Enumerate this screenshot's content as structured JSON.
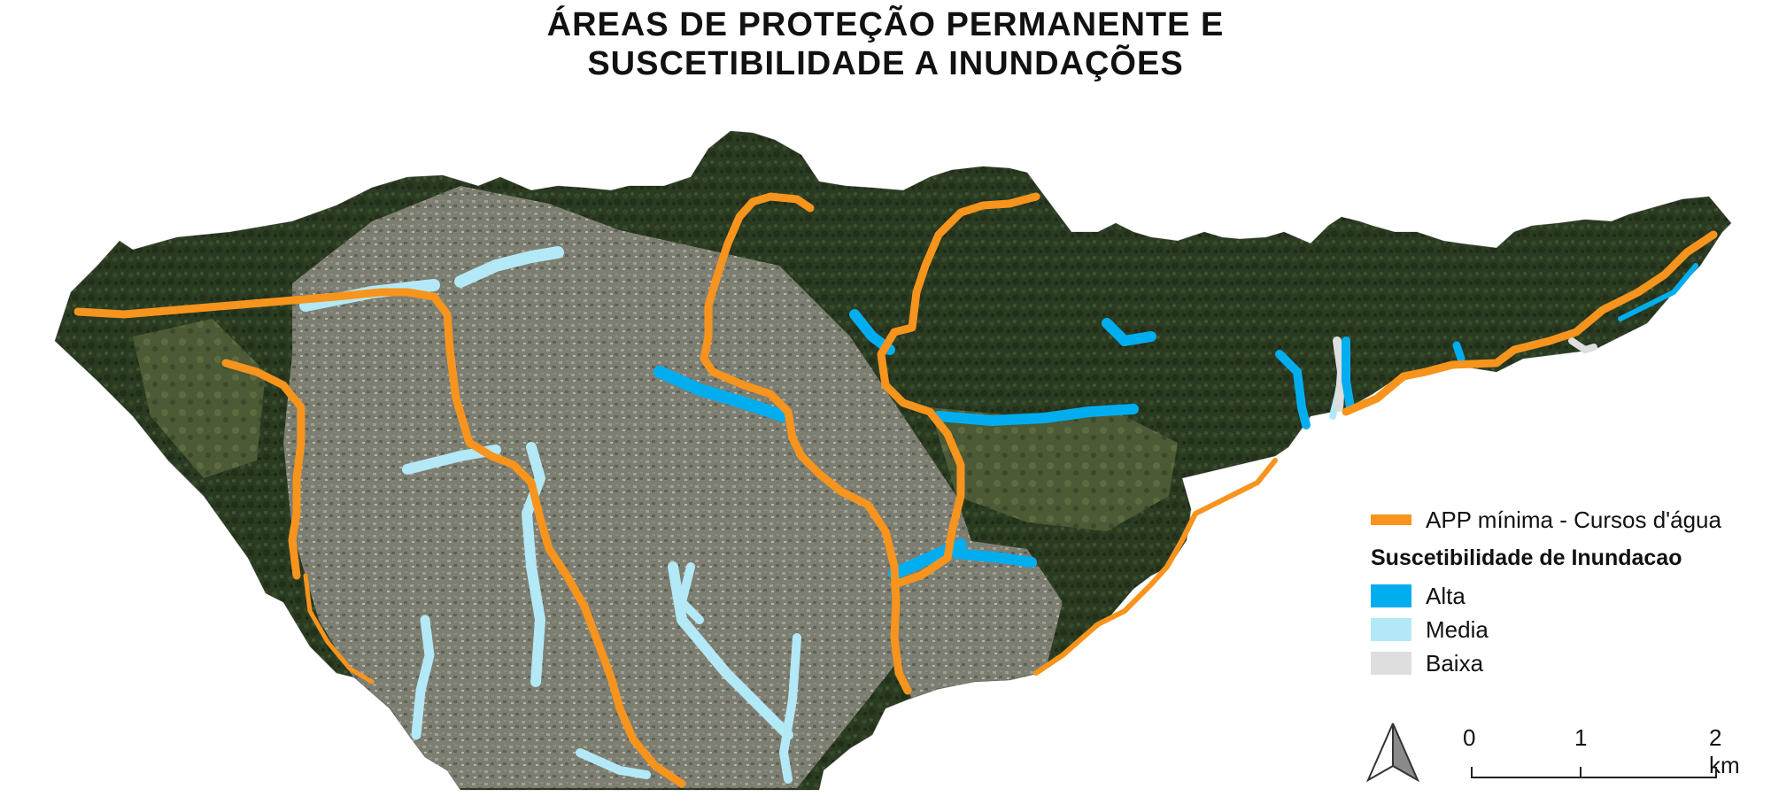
{
  "title": {
    "line1": "ÁREAS DE PROTEÇÃO PERMANENTE E",
    "line2": "SUSCETIBILIDADE A INUNDAÇÕES"
  },
  "legend": {
    "app_label": "APP mínima - Cursos d'água",
    "heading": "Suscetibilidade de Inundacao",
    "classes": [
      {
        "label": "Alta",
        "color": "#00aeef"
      },
      {
        "label": "Media",
        "color": "#b3e9f7"
      },
      {
        "label": "Baixa",
        "color": "#dedede"
      }
    ],
    "app_color": "#f7941d"
  },
  "scale_bar": {
    "ticks": [
      "0",
      "1",
      "2 km"
    ]
  },
  "colors": {
    "forest": "#2b3a22",
    "urban": "#7b7d70",
    "river_app": "#f7941d",
    "flood_high": "#00aeef",
    "flood_medium": "#b3e9f7",
    "flood_low": "#dedede"
  },
  "icons": {
    "north_arrow": "north-arrow-icon"
  }
}
